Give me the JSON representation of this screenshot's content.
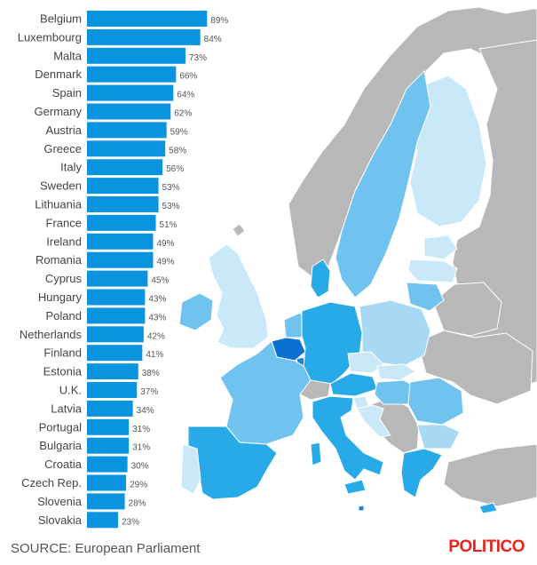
{
  "chart_data": {
    "type": "bar",
    "orientation": "horizontal",
    "categories": [
      "Belgium",
      "Luxembourg",
      "Malta",
      "Denmark",
      "Spain",
      "Germany",
      "Austria",
      "Greece",
      "Italy",
      "Sweden",
      "Lithuania",
      "France",
      "Ireland",
      "Romania",
      "Cyprus",
      "Hungary",
      "Poland",
      "Netherlands",
      "Finland",
      "Estonia",
      "U.K.",
      "Latvia",
      "Portugal",
      "Bulgaria",
      "Croatia",
      "Czech Rep.",
      "Slovenia",
      "Slovakia"
    ],
    "values": [
      89,
      84,
      73,
      66,
      64,
      62,
      59,
      58,
      56,
      53,
      53,
      51,
      49,
      49,
      45,
      43,
      43,
      42,
      41,
      38,
      37,
      34,
      31,
      31,
      30,
      29,
      28,
      23
    ],
    "value_labels": [
      "89%",
      "84%",
      "73%",
      "66%",
      "64%",
      "62%",
      "59%",
      "58%",
      "56%",
      "53%",
      "53%",
      "51%",
      "49%",
      "49%",
      "45%",
      "43%",
      "43%",
      "42%",
      "41%",
      "38%",
      "37%",
      "34%",
      "31%",
      "31%",
      "30%",
      "29%",
      "28%",
      "23%"
    ],
    "xlim": [
      0,
      100
    ],
    "grid": false,
    "legend": "none",
    "colors": {
      "bar": "#0a94e0",
      "map_top": "#0c6fd1",
      "map_dark": "#29aae8",
      "map_mid": "#6fc3ee",
      "map_light": "#a7d9f4",
      "map_pale": "#c9e9f9",
      "non_eu": "#b8b8b8",
      "sea": "#ffffff"
    }
  },
  "footer": {
    "source": "SOURCE: European Parliament",
    "logo": "POLITICO"
  }
}
